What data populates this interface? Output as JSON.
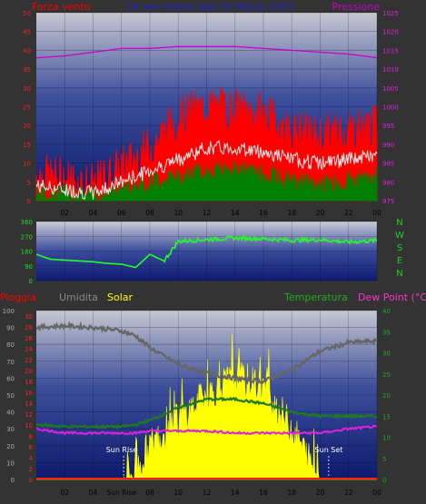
{
  "top": {
    "title": "24 ore meteo dati 10 Marzo 2021",
    "left_label": "Forza vento",
    "right_label": "Pressione",
    "left_ticks": [
      0,
      5,
      10,
      15,
      20,
      25,
      30,
      35,
      40,
      45,
      50
    ],
    "right_ticks": [
      975,
      980,
      985,
      990,
      995,
      1000,
      1005,
      1010,
      1015,
      1020,
      1025
    ],
    "x_ticks": [
      "02",
      "04",
      "06",
      "08",
      "10",
      "12",
      "14",
      "16",
      "18",
      "20",
      "22",
      "00"
    ]
  },
  "middle": {
    "y_ticks": [
      0,
      90,
      180,
      270,
      360
    ],
    "compass": [
      "N",
      "W",
      "S",
      "E",
      "N"
    ],
    "x_ticks": [
      "02",
      "04",
      "06",
      "08",
      "10",
      "12",
      "14",
      "16",
      "18",
      "20",
      "22",
      "00"
    ]
  },
  "bottom": {
    "label_rain": "Pioggia",
    "label_hum": "Umidita",
    "label_solar": "Solar",
    "label_temp": "Temperatura",
    "label_dew": "Dew Point (°C)",
    "left_hum_ticks": [
      0,
      10,
      20,
      30,
      40,
      50,
      60,
      70,
      80,
      90,
      100
    ],
    "left_rain_ticks": [
      0,
      2,
      4,
      6,
      8,
      10,
      12,
      14,
      16,
      18,
      20,
      22,
      24,
      26,
      28,
      30
    ],
    "right_temp_ticks": [
      0,
      5,
      10,
      15,
      20,
      25,
      30,
      35,
      40
    ],
    "x_ticks": [
      "02",
      "04",
      "Sun Rise",
      "08",
      "10",
      "12",
      "14",
      "16",
      "18",
      "20",
      "22",
      "00"
    ],
    "sunrise_label": "Sun Rise",
    "sunset_label": "Sun Set"
  },
  "colors": {
    "background": "#333333",
    "wind_gust": "#ff0000",
    "wind_avg": "#008000",
    "wind_line": "#e8e8e8",
    "pressure": "#cc00cc",
    "direction": "#22ff22",
    "humidity": "#666666",
    "solar": "#ffff00",
    "temperature": "#1f7a1f",
    "dewpoint": "#dd22dd",
    "title": "#2222cc",
    "tick_green": "#22aa22"
  },
  "chart_data": [
    {
      "type": "line",
      "title": "24 ore meteo dati 10 Marzo 2021",
      "xlabel": "",
      "ylabel": "Forza vento",
      "y2label": "Pressione",
      "ylim": [
        0,
        50
      ],
      "y2lim": [
        975,
        1025
      ],
      "x": [
        0,
        2,
        4,
        6,
        8,
        10,
        12,
        14,
        16,
        18,
        20,
        22,
        24
      ],
      "series": [
        {
          "name": "Forza vento",
          "values": [
            7,
            6,
            4,
            9,
            14,
            22,
            25,
            24,
            23,
            18,
            17,
            19,
            20
          ]
        },
        {
          "values": [
            4,
            3,
            2,
            5,
            8,
            11,
            14,
            14,
            13,
            11,
            10,
            11,
            12
          ]
        },
        {
          "values": [
            2,
            1.5,
            1,
            3,
            5,
            6,
            8,
            8,
            7,
            5,
            4,
            5,
            6
          ]
        },
        {
          "name": "Pressione",
          "values": [
            1013,
            1013.5,
            1014.5,
            1015.5,
            1015.5,
            1016,
            1016,
            1016,
            1015.5,
            1015,
            1014.5,
            1014,
            1013
          ]
        }
      ]
    },
    {
      "type": "line",
      "ylim": [
        0,
        360
      ],
      "x": [
        0,
        1,
        2,
        3,
        4,
        5,
        6,
        7,
        8,
        9,
        10,
        12,
        14,
        16,
        18,
        20,
        22,
        23,
        24
      ],
      "series": [
        {
          "values": [
            160,
            130,
            125,
            120,
            115,
            105,
            100,
            80,
            160,
            120,
            240,
            250,
            260,
            255,
            245,
            250,
            235,
            240,
            245
          ]
        }
      ]
    },
    {
      "type": "line",
      "ylim": [
        0,
        100
      ],
      "y2lim": [
        0,
        40
      ],
      "x": [
        0,
        2,
        4,
        6,
        7,
        8,
        10,
        12,
        14,
        16,
        18,
        20,
        22,
        24
      ],
      "series": [
        {
          "name": "Umidita",
          "values": [
            90,
            91,
            90,
            88,
            85,
            78,
            68,
            63,
            60,
            58,
            65,
            76,
            81,
            82
          ]
        },
        {
          "name": "Temperatura",
          "values": [
            13,
            12.5,
            12.5,
            12.5,
            13,
            14,
            17,
            19,
            19,
            18,
            16,
            15,
            15,
            15
          ]
        },
        {
          "name": "Dew Point (°C)",
          "values": [
            12,
            11,
            11,
            11,
            11,
            11.5,
            11.5,
            11.5,
            11,
            11,
            11,
            11,
            12,
            12.5
          ]
        },
        {
          "name": "Solar",
          "values": [
            0,
            0,
            0,
            0,
            5,
            20,
            35,
            50,
            60,
            55,
            30,
            0,
            0,
            0
          ]
        },
        {
          "name": "Pioggia",
          "values": [
            0,
            0,
            0,
            0,
            0,
            0,
            0,
            0,
            0,
            0,
            0,
            0,
            0,
            0
          ]
        }
      ]
    }
  ]
}
